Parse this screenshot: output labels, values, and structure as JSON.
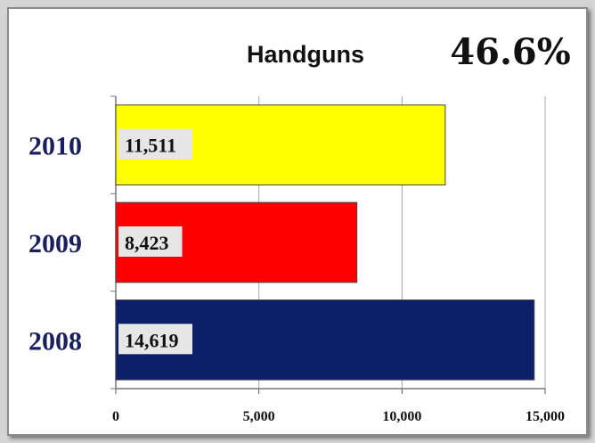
{
  "chart_data": {
    "type": "bar",
    "orientation": "horizontal",
    "title": "Handguns",
    "annotation": "46.6%",
    "categories": [
      "2010",
      "2009",
      "2008"
    ],
    "values": [
      11511,
      8423,
      14619
    ],
    "data_labels": [
      "11,511",
      "8,423",
      "14,619"
    ],
    "bar_colors": [
      "#ffff00",
      "#ff0000",
      "#0d1f6b"
    ],
    "xlim": [
      0,
      15000
    ],
    "xticks": [
      0,
      5000,
      10000,
      15000
    ],
    "xtick_labels": [
      "0",
      "5,000",
      "10,000",
      "15,000"
    ],
    "xlabel": "",
    "ylabel": "",
    "grid": true,
    "legend": "none"
  }
}
